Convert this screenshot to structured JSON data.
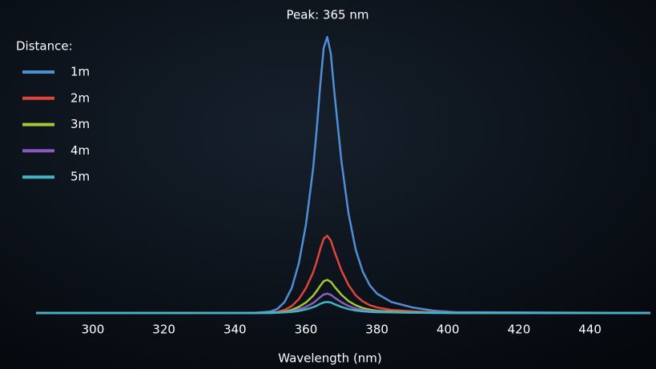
{
  "chart_data": {
    "type": "line",
    "title": "Peak: 365 nm",
    "xlabel": "Wavelength (nm)",
    "legend_title": "Distance:",
    "legend": "upper left",
    "xlim": [
      284,
      457
    ],
    "xticks": [
      300,
      320,
      340,
      360,
      380,
      400,
      420,
      440
    ],
    "ylim": [
      0,
      1.05
    ],
    "x": [
      284,
      345,
      350,
      352,
      354,
      356,
      358,
      360,
      362,
      363,
      364,
      365,
      366,
      367,
      368,
      370,
      372,
      374,
      376,
      378,
      380,
      384,
      390,
      396,
      402,
      457
    ],
    "series": [
      {
        "name": "1m",
        "color": "#4f8fd6",
        "values": [
          0,
          0,
          0.005,
          0.015,
          0.04,
          0.09,
          0.18,
          0.32,
          0.52,
          0.66,
          0.82,
          0.96,
          1.0,
          0.94,
          0.8,
          0.55,
          0.36,
          0.23,
          0.15,
          0.1,
          0.07,
          0.04,
          0.02,
          0.008,
          0.003,
          0
        ]
      },
      {
        "name": "2m",
        "color": "#e0453a",
        "values": [
          0,
          0,
          0.001,
          0.004,
          0.011,
          0.025,
          0.05,
          0.09,
          0.146,
          0.185,
          0.23,
          0.269,
          0.28,
          0.263,
          0.224,
          0.154,
          0.101,
          0.064,
          0.042,
          0.028,
          0.02,
          0.011,
          0.006,
          0.002,
          0.001,
          0
        ]
      },
      {
        "name": "3m",
        "color": "#a6c63a",
        "values": [
          0,
          0,
          0.001,
          0.002,
          0.005,
          0.011,
          0.022,
          0.038,
          0.062,
          0.079,
          0.098,
          0.115,
          0.12,
          0.113,
          0.096,
          0.066,
          0.043,
          0.028,
          0.018,
          0.012,
          0.008,
          0.005,
          0.002,
          0.001,
          0,
          0
        ]
      },
      {
        "name": "4m",
        "color": "#8b5cc2",
        "values": [
          0,
          0,
          0,
          0.001,
          0.003,
          0.006,
          0.013,
          0.022,
          0.036,
          0.046,
          0.057,
          0.067,
          0.07,
          0.066,
          0.056,
          0.039,
          0.025,
          0.016,
          0.011,
          0.007,
          0.005,
          0.003,
          0.001,
          0.001,
          0,
          0
        ]
      },
      {
        "name": "5m",
        "color": "#3fb5c6",
        "values": [
          0,
          0,
          0,
          0.001,
          0.002,
          0.004,
          0.007,
          0.013,
          0.021,
          0.026,
          0.033,
          0.038,
          0.04,
          0.038,
          0.032,
          0.022,
          0.014,
          0.009,
          0.006,
          0.004,
          0.003,
          0.002,
          0.001,
          0,
          0,
          0
        ]
      }
    ]
  }
}
